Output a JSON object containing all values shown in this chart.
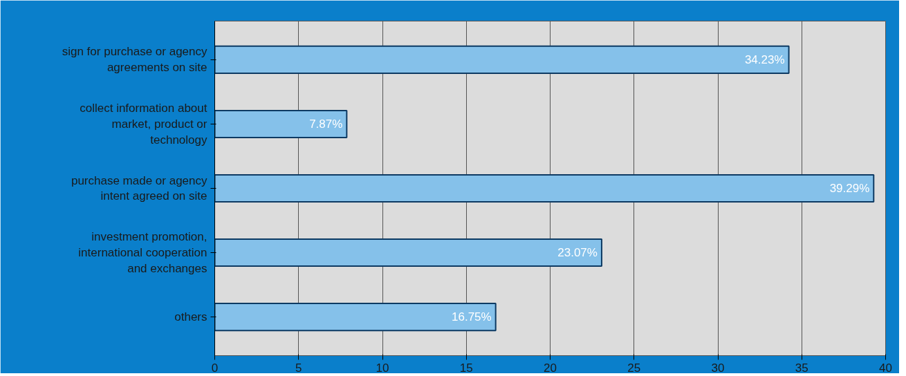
{
  "chart_data": {
    "type": "bar",
    "orientation": "horizontal",
    "categories": [
      "sign for purchase or agency agreements on site",
      "collect information about market, product or technology",
      "purchase made or agency intent agreed on site",
      "investment promotion, international cooperation and exchanges",
      "others"
    ],
    "values": [
      34.23,
      7.87,
      39.29,
      23.07,
      16.75
    ],
    "value_labels": [
      "34.23%",
      "7.87%",
      "39.29%",
      "23.07%",
      "16.75%"
    ],
    "color": "#85c1ea",
    "xlim": [
      0,
      40
    ],
    "xticks": [
      0,
      5,
      10,
      15,
      20,
      25,
      30,
      35,
      40
    ],
    "grid": "x"
  }
}
